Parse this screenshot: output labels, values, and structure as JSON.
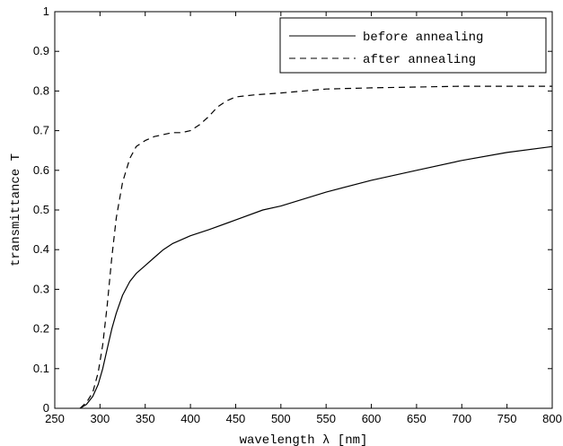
{
  "chart_data": {
    "type": "line",
    "title": "",
    "xlabel": "wavelength λ [nm]",
    "ylabel": "transmittance T",
    "xlim": [
      250,
      800
    ],
    "ylim": [
      0,
      1
    ],
    "xticks": [
      250,
      300,
      350,
      400,
      450,
      500,
      550,
      600,
      650,
      700,
      750,
      800
    ],
    "yticks": [
      0,
      0.1,
      0.2,
      0.3,
      0.4,
      0.5,
      0.6,
      0.7,
      0.8,
      0.9,
      1
    ],
    "xtick_labels": [
      "250",
      "300",
      "350",
      "400",
      "450",
      "500",
      "550",
      "600",
      "650",
      "700",
      "750",
      "800"
    ],
    "ytick_labels": [
      "0",
      "0.1",
      "0.2",
      "0.3",
      "0.4",
      "0.5",
      "0.6",
      "0.7",
      "0.8",
      "0.9",
      "1"
    ],
    "grid": false,
    "legend_position": "top-right",
    "series": [
      {
        "name": "before annealing",
        "style": "solid",
        "color": "#000000",
        "x": [
          278,
          285,
          292,
          298,
          303,
          308,
          313,
          318,
          325,
          333,
          340,
          350,
          360,
          370,
          380,
          400,
          420,
          450,
          480,
          500,
          550,
          600,
          650,
          700,
          750,
          800
        ],
        "y": [
          0,
          0.01,
          0.03,
          0.06,
          0.1,
          0.15,
          0.2,
          0.24,
          0.285,
          0.32,
          0.34,
          0.36,
          0.38,
          0.4,
          0.415,
          0.435,
          0.45,
          0.475,
          0.5,
          0.51,
          0.545,
          0.575,
          0.6,
          0.625,
          0.645,
          0.66
        ]
      },
      {
        "name": "after annealing",
        "style": "dashed",
        "color": "#000000",
        "x": [
          278,
          285,
          292,
          298,
          303,
          308,
          313,
          318,
          325,
          333,
          340,
          350,
          360,
          370,
          380,
          390,
          400,
          410,
          420,
          430,
          440,
          450,
          470,
          500,
          550,
          600,
          650,
          700,
          750,
          800
        ],
        "y": [
          0,
          0.015,
          0.04,
          0.09,
          0.16,
          0.26,
          0.38,
          0.48,
          0.57,
          0.63,
          0.66,
          0.675,
          0.685,
          0.69,
          0.695,
          0.695,
          0.7,
          0.715,
          0.735,
          0.76,
          0.775,
          0.785,
          0.79,
          0.795,
          0.805,
          0.808,
          0.81,
          0.812,
          0.812,
          0.812
        ]
      }
    ]
  }
}
